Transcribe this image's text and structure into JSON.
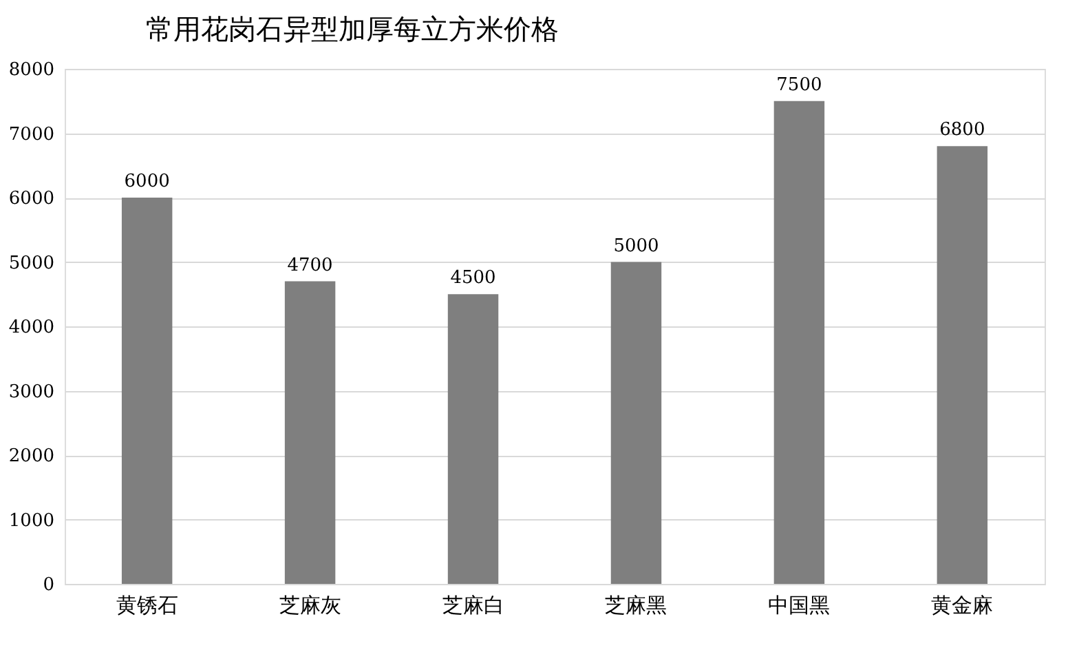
{
  "chart_data": {
    "type": "bar",
    "title": "常用花岗石异型加厚每立方米价格",
    "categories": [
      "黄锈石",
      "芝麻灰",
      "芝麻白",
      "芝麻黑",
      "中国黑",
      "黄金麻"
    ],
    "values": [
      6000,
      4700,
      4500,
      5000,
      7500,
      6800
    ],
    "color": "#7f7f7f",
    "ylim": [
      0,
      8000
    ],
    "yticks": [
      0,
      1000,
      2000,
      3000,
      4000,
      5000,
      6000,
      7000,
      8000
    ],
    "grid": "y",
    "data_labels": true
  }
}
